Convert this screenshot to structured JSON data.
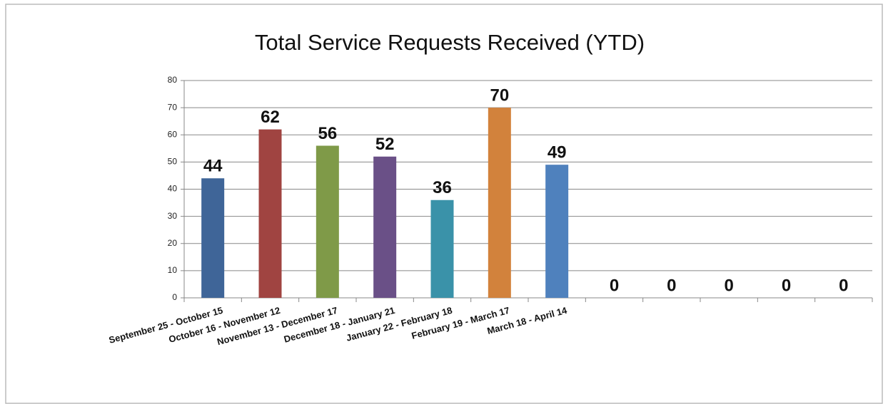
{
  "chart_data": {
    "type": "bar",
    "title": "Total Service Requests Received (YTD)",
    "categories": [
      "September 25 - October 15",
      "October 16 - November 12",
      "November 13 - December 17",
      "December 18 - January 21",
      "January 22 - February 18",
      "February 19 - March 17",
      "March 18 - April 14",
      null,
      null,
      null,
      null,
      null
    ],
    "values": [
      44,
      62,
      56,
      52,
      36,
      70,
      49,
      0,
      0,
      0,
      0,
      0
    ],
    "colors": [
      "#3f6598",
      "#a04441",
      "#7f9a48",
      "#6a5087",
      "#3a92a9",
      "#d2823c",
      "#4f81bd"
    ],
    "ylim": [
      0,
      80
    ],
    "yticks": [
      0,
      10,
      20,
      30,
      40,
      50,
      60,
      70,
      80
    ],
    "grid": true
  }
}
